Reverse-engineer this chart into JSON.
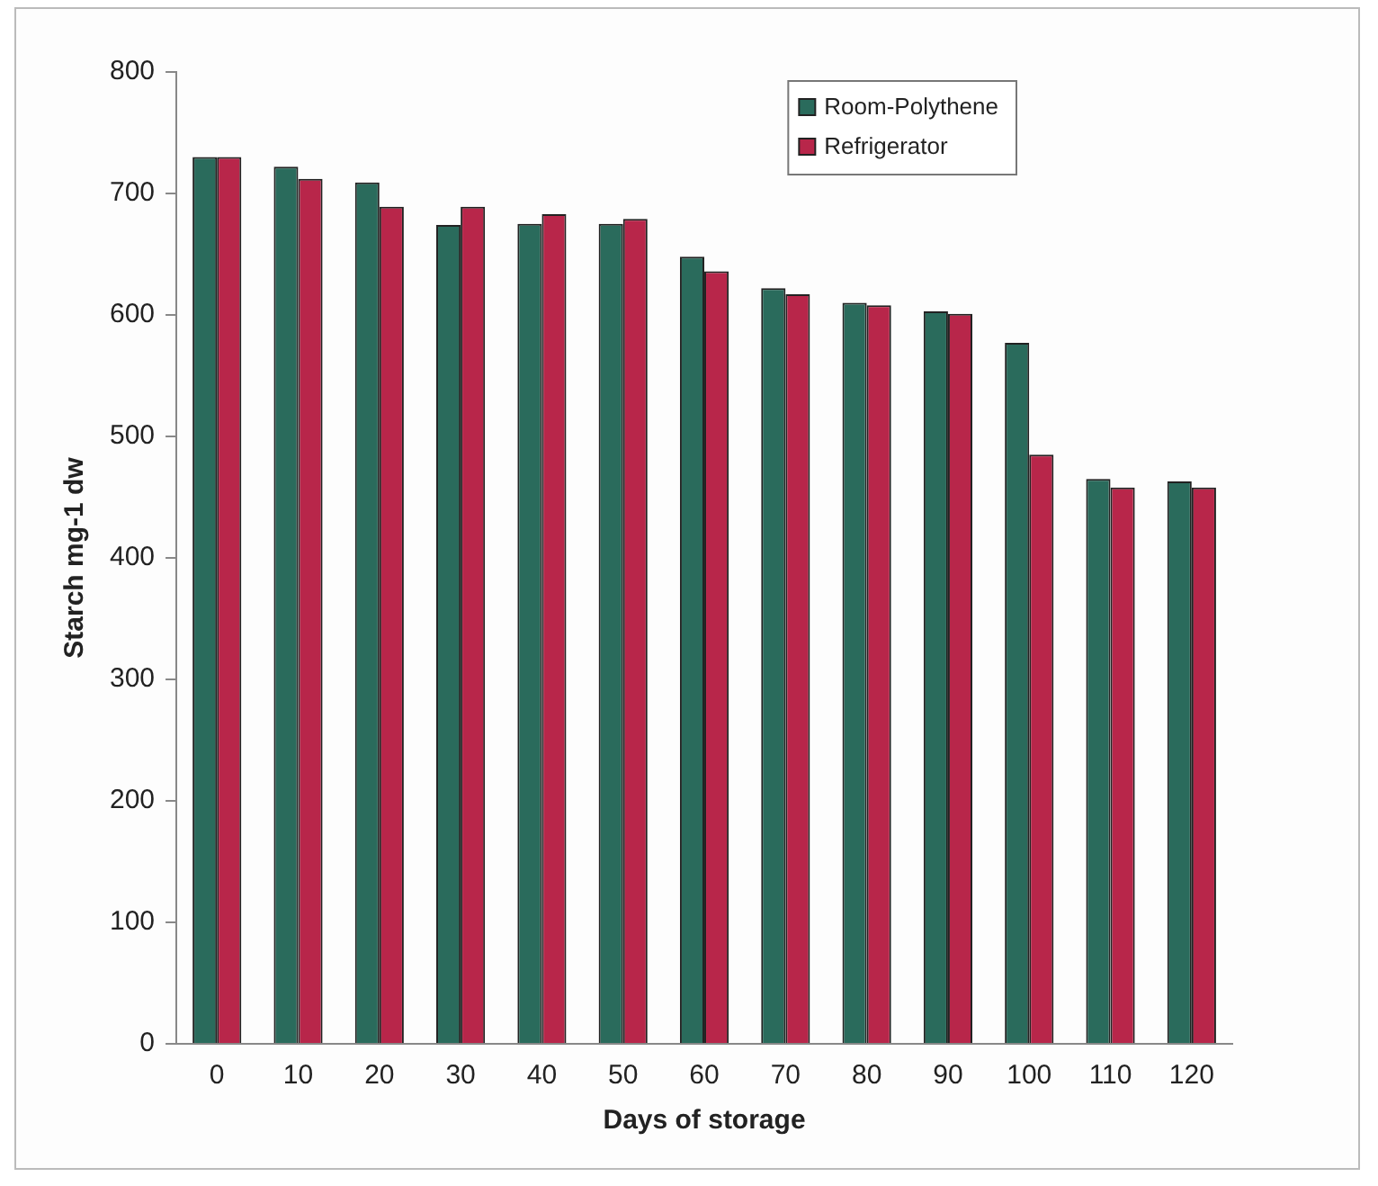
{
  "chart_data": {
    "type": "bar",
    "xlabel": "Days of storage",
    "ylabel": "Starch mg-1 dw",
    "categories": [
      "0",
      "10",
      "20",
      "30",
      "40",
      "50",
      "60",
      "70",
      "80",
      "90",
      "100",
      "110",
      "120"
    ],
    "series": [
      {
        "name": "Room-Polythene",
        "color": "#2a6b5c",
        "values": [
          730,
          722,
          709,
          674,
          675,
          675,
          648,
          622,
          610,
          603,
          577,
          465,
          463
        ]
      },
      {
        "name": "Refrigerator",
        "color": "#b8264a",
        "values": [
          730,
          712,
          689,
          689,
          683,
          679,
          636,
          617,
          608,
          601,
          485,
          458,
          458
        ]
      }
    ],
    "ylim": [
      0,
      800
    ],
    "yticks": [
      0,
      100,
      200,
      300,
      400,
      500,
      600,
      700,
      800
    ],
    "grid": false,
    "legend": "top right"
  }
}
